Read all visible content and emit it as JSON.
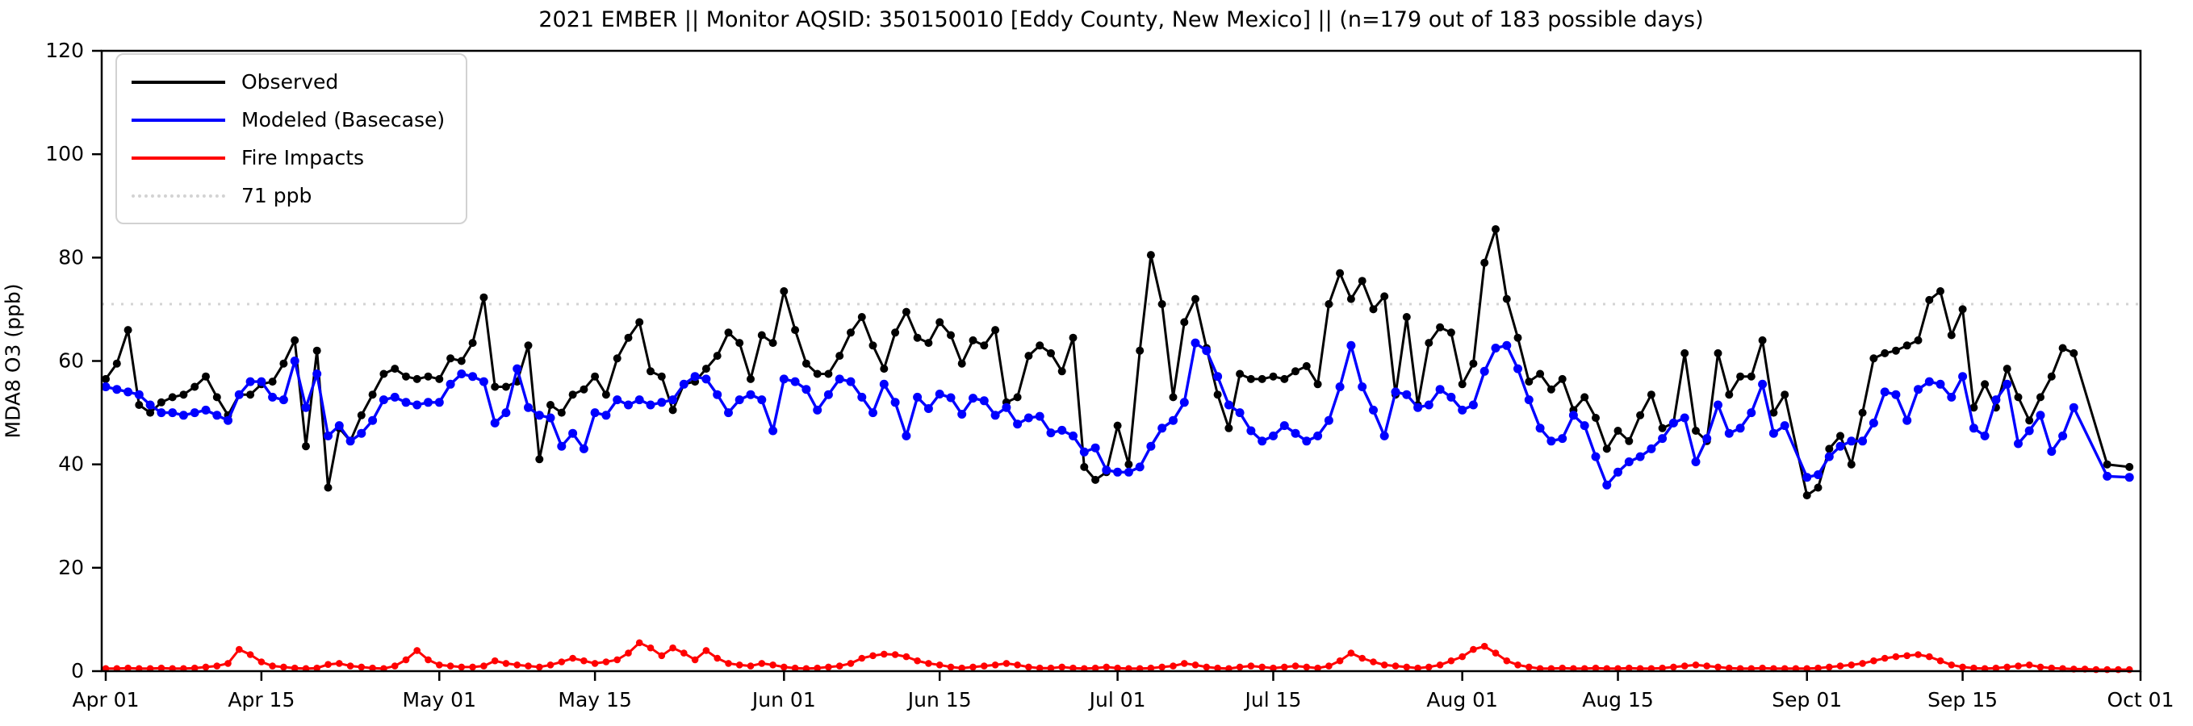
{
  "chart_data": {
    "type": "line",
    "title": "2021 EMBER || Monitor AQSID: 350150010 [Eddy County, New Mexico] || (n=179 out of 183 possible days)",
    "ylabel": "MDA8 O3 (ppb)",
    "ylim": [
      0,
      120
    ],
    "yticks": [
      0,
      20,
      40,
      60,
      80,
      100,
      120
    ],
    "x_start_date": "Apr 01",
    "x_end_date": "Oct 01",
    "xticks": [
      {
        "label": "Apr 01",
        "day": 0
      },
      {
        "label": "Apr 15",
        "day": 14
      },
      {
        "label": "May 01",
        "day": 30
      },
      {
        "label": "May 15",
        "day": 44
      },
      {
        "label": "Jun 01",
        "day": 61
      },
      {
        "label": "Jun 15",
        "day": 75
      },
      {
        "label": "Jul 01",
        "day": 91
      },
      {
        "label": "Jul 15",
        "day": 105
      },
      {
        "label": "Aug 01",
        "day": 122
      },
      {
        "label": "Aug 15",
        "day": 136
      },
      {
        "label": "Sep 01",
        "day": 153
      },
      {
        "label": "Sep 15",
        "day": 167
      },
      {
        "label": "Oct 01",
        "day": 183
      }
    ],
    "reference_line": {
      "value": 71,
      "color": "#d3d3d3"
    },
    "legend": [
      {
        "label": "Observed",
        "color": "#000000",
        "style": "solid"
      },
      {
        "label": "Modeled (Basecase)",
        "color": "#0000ff",
        "style": "solid"
      },
      {
        "label": "Fire Impacts",
        "color": "#ff0000",
        "style": "solid"
      },
      {
        "label": "71 ppb",
        "color": "#d3d3d3",
        "style": "dotted"
      }
    ],
    "grid": false,
    "legend_position": "upper left",
    "series": [
      {
        "name": "Observed",
        "color": "#000000",
        "marker_radius": 5,
        "line_width": 3,
        "values": [
          56.5,
          59.5,
          66,
          51.5,
          50,
          52,
          53,
          53.5,
          55,
          57,
          53,
          49.5,
          53.5,
          53.5,
          55.5,
          56,
          59.5,
          64,
          43.5,
          62,
          35.5,
          47,
          44.5,
          49.5,
          53.5,
          57.5,
          58.5,
          57,
          56.5,
          57,
          56.5,
          60.5,
          60,
          63.5,
          72.3,
          55,
          55,
          56,
          63,
          41,
          51.5,
          50,
          53.5,
          54.5,
          57,
          53.5,
          60.5,
          64.5,
          67.5,
          58,
          57,
          50.5,
          55.5,
          56,
          58.5,
          61,
          65.5,
          63.5,
          56.5,
          65,
          63.5,
          73.5,
          66,
          59.5,
          57.5,
          57.5,
          61,
          65.5,
          68.5,
          63,
          58.5,
          65.5,
          69.5,
          64.5,
          63.5,
          67.5,
          65,
          59.5,
          64,
          63,
          66,
          52,
          53,
          61,
          63,
          61.5,
          58,
          64.5,
          39.5,
          37,
          38.5,
          47.5,
          40,
          62,
          80.5,
          71,
          53,
          67.5,
          72,
          62.5,
          53.5,
          47,
          57.5,
          56.5,
          56.5,
          57,
          56.5,
          58,
          59,
          55.5,
          71,
          77,
          72,
          75.5,
          70,
          72.5,
          53.5,
          68.5,
          51.5,
          63.5,
          66.5,
          65.5,
          55.5,
          59.5,
          79,
          85.5,
          72,
          64.5,
          56,
          57.5,
          54.5,
          56.5,
          50.5,
          53,
          49,
          43,
          46.5,
          44.5,
          49.5,
          53.5,
          47,
          48,
          61.5,
          46.5,
          44.5,
          61.5,
          53.5,
          57,
          57,
          64,
          50,
          53.5,
          null,
          34,
          35.5,
          43,
          45.5,
          40,
          50,
          60.5,
          61.5,
          62,
          63,
          64,
          71.8,
          73.5,
          65,
          70,
          51,
          55.5,
          51,
          58.5,
          53,
          48.5,
          53,
          57,
          62.5,
          61.5,
          null,
          null,
          40,
          null,
          39.5
        ]
      },
      {
        "name": "Modeled (Basecase)",
        "color": "#0000ff",
        "marker_radius": 5.5,
        "line_width": 3.4,
        "values": [
          55,
          54.5,
          54,
          53.5,
          51.5,
          50,
          50,
          49.5,
          50,
          50.5,
          49.5,
          48.5,
          53.5,
          56,
          56,
          53,
          52.5,
          60,
          51,
          57.5,
          45.5,
          47.5,
          44.5,
          46,
          48.5,
          52.5,
          53,
          52,
          51.5,
          52,
          52,
          55.5,
          57.5,
          57,
          56,
          48,
          50,
          58.5,
          51,
          49.5,
          49,
          43.5,
          46,
          43,
          50,
          49.5,
          52.5,
          51.5,
          52.5,
          51.5,
          52,
          52.5,
          55.5,
          57,
          56.5,
          53.5,
          50,
          52.5,
          53.5,
          52.5,
          46.5,
          56.5,
          56,
          54.5,
          50.5,
          53.5,
          56.5,
          56,
          53,
          50,
          55.5,
          52,
          45.5,
          53,
          50.8,
          53.6,
          52.9,
          49.7,
          52.8,
          52.3,
          49.5,
          51,
          47.8,
          49,
          49.3,
          46.1,
          46.6,
          45.5,
          42.4,
          43.2,
          38.9,
          38.5,
          38.5,
          39.5,
          43.5,
          47,
          48.5,
          52,
          63.5,
          62,
          57,
          51.5,
          50,
          46.5,
          44.5,
          45.5,
          47.5,
          46,
          44.5,
          45.5,
          48.5,
          55,
          63,
          55,
          50.5,
          45.5,
          54,
          53.5,
          51,
          51.5,
          54.5,
          53,
          50.5,
          51.5,
          58,
          62.5,
          63,
          58.5,
          52.5,
          47,
          44.5,
          45,
          49.5,
          47.5,
          41.5,
          36,
          38.5,
          40.5,
          41.5,
          43,
          45,
          48,
          49,
          40.5,
          45,
          51.5,
          46,
          47,
          50,
          55.5,
          46,
          47.5,
          null,
          37.5,
          38,
          41.5,
          43.5,
          44.5,
          44.5,
          48,
          54,
          53.5,
          48.5,
          54.5,
          56,
          55.5,
          53,
          57,
          47,
          45.5,
          52.5,
          55.5,
          44,
          46.5,
          49.5,
          42.5,
          45.5,
          51,
          null,
          null,
          37.7,
          null,
          37.5
        ]
      },
      {
        "name": "Fire Impacts",
        "color": "#ff0000",
        "marker_radius": 4.3,
        "line_width": 3,
        "values": [
          0.5,
          0.5,
          0.6,
          0.5,
          0.5,
          0.6,
          0.5,
          0.5,
          0.6,
          0.8,
          1,
          1.5,
          4.2,
          3.2,
          1.8,
          1,
          0.8,
          0.6,
          0.5,
          0.6,
          1.3,
          1.5,
          1,
          0.8,
          0.6,
          0.5,
          1,
          2.2,
          4,
          2.2,
          1.2,
          1,
          0.8,
          0.8,
          1,
          2,
          1.5,
          1.2,
          1,
          0.8,
          1.2,
          1.8,
          2.5,
          2,
          1.5,
          1.8,
          2.2,
          3.5,
          5.5,
          4.5,
          3,
          4.5,
          3.5,
          2.2,
          4,
          2.5,
          1.5,
          1.2,
          1,
          1.5,
          1.2,
          0.8,
          0.6,
          0.5,
          0.6,
          0.8,
          1,
          1.5,
          2.5,
          3,
          3.3,
          3.2,
          2.8,
          2,
          1.5,
          1.2,
          0.8,
          0.6,
          0.8,
          1,
          1.2,
          1.5,
          1.2,
          0.8,
          0.6,
          0.6,
          0.8,
          0.6,
          0.5,
          0.6,
          0.8,
          0.6,
          0.5,
          0.5,
          0.6,
          0.8,
          1,
          1.5,
          1.2,
          0.8,
          0.6,
          0.5,
          0.8,
          1,
          0.8,
          0.6,
          0.8,
          1,
          0.8,
          0.6,
          1,
          2,
          3.5,
          2.5,
          1.8,
          1.2,
          1,
          0.8,
          0.6,
          0.8,
          1.2,
          2,
          2.8,
          4.2,
          4.8,
          3.5,
          2,
          1.2,
          0.8,
          0.5,
          0.5,
          0.6,
          0.5,
          0.5,
          0.6,
          0.5,
          0.5,
          0.6,
          0.5,
          0.5,
          0.6,
          0.8,
          1,
          1.2,
          1,
          0.8,
          0.6,
          0.5,
          0.5,
          0.6,
          0.5,
          0.5,
          0.5,
          0.5,
          0.6,
          0.8,
          1,
          1.2,
          1.5,
          2,
          2.5,
          2.8,
          3,
          3.2,
          2.8,
          2,
          1.2,
          0.8,
          0.6,
          0.5,
          0.6,
          0.8,
          1,
          1.2,
          0.8,
          0.6,
          0.5,
          0.4,
          0.4,
          0.3,
          0.3,
          0.3,
          0.3
        ]
      }
    ]
  }
}
